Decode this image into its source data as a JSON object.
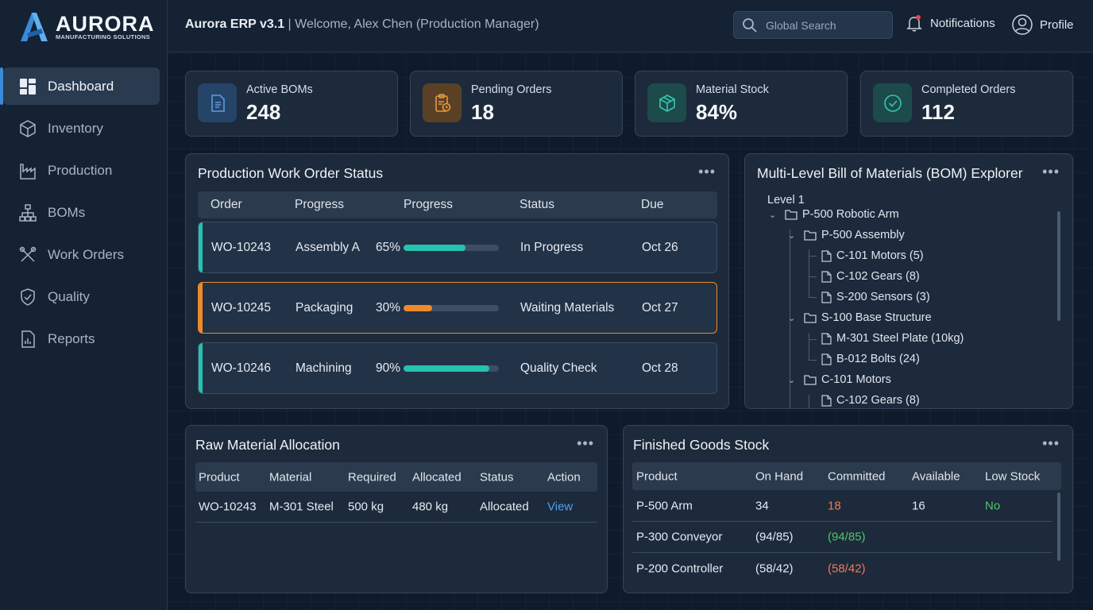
{
  "brand": {
    "name": "AURORA",
    "subtitle": "MANUFACTURING SOLUTIONS"
  },
  "topbar": {
    "app": "Aurora ERP v3.1",
    "welcome": "| Welcome, Alex Chen (Production Manager)",
    "search_placeholder": "Global Search",
    "notifications": "Notifications",
    "profile": "Profile"
  },
  "nav": [
    {
      "label": "Dashboard",
      "icon": "dashboard-icon",
      "active": true
    },
    {
      "label": "Inventory",
      "icon": "box-icon"
    },
    {
      "label": "Production",
      "icon": "factory-icon"
    },
    {
      "label": "BOMs",
      "icon": "hierarchy-icon"
    },
    {
      "label": "Work Orders",
      "icon": "tools-icon"
    },
    {
      "label": "Quality",
      "icon": "shield-check-icon"
    },
    {
      "label": "Reports",
      "icon": "report-icon"
    }
  ],
  "kpis": [
    {
      "label": "Active BOMs",
      "value": "248",
      "icon": "document-icon",
      "color": "#5b9be0",
      "bg": "#264468"
    },
    {
      "label": "Pending Orders",
      "value": "18",
      "icon": "clipboard-clock-icon",
      "color": "#e79b3c",
      "bg": "#5a4126"
    },
    {
      "label": "Material Stock",
      "value": "84%",
      "icon": "cube-icon",
      "color": "#35c7b2",
      "bg": "#1d4a4a"
    },
    {
      "label": "Completed Orders",
      "value": "112",
      "icon": "check-circle-icon",
      "color": "#35c7b2",
      "bg": "#1d4a4a"
    }
  ],
  "work_orders": {
    "title": "Production Work Order Status",
    "headers": [
      "Order",
      "Progress",
      "Progress",
      "Status",
      "Due"
    ],
    "rows": [
      {
        "order": "WO-10243",
        "stage": "Assembly A",
        "pct": "65%",
        "progress": 0.65,
        "status": "In Progress",
        "due": "Oct 26",
        "color": "#26c2b0"
      },
      {
        "order": "WO-10245",
        "stage": "Packaging",
        "pct": "30%",
        "progress": 0.3,
        "status": "Waiting Materials",
        "due": "Oct 27",
        "color": "#ef8a2a"
      },
      {
        "order": "WO-10246",
        "stage": "Machining",
        "pct": "90%",
        "progress": 0.9,
        "status": "Quality Check",
        "due": "Oct 28",
        "color": "#26c2b0"
      }
    ]
  },
  "bom": {
    "title": "Multi-Level Bill of Materials (BOM) Explorer",
    "level": "Level 1",
    "nodes": [
      {
        "label": "P-500 Robotic Arm",
        "type": "folder",
        "depth": 0
      },
      {
        "label": "P-500 Assembly",
        "type": "folder",
        "depth": 1
      },
      {
        "label": "C-101 Motors (5)",
        "type": "file",
        "depth": 2
      },
      {
        "label": "C-102 Gears (8)",
        "type": "file",
        "depth": 2
      },
      {
        "label": "S-200 Sensors (3)",
        "type": "file",
        "depth": 2
      },
      {
        "label": "S-100 Base Structure",
        "type": "folder",
        "depth": 1
      },
      {
        "label": "M-301 Steel Plate (10kg)",
        "type": "file",
        "depth": 2
      },
      {
        "label": "B-012 Bolts (24)",
        "type": "file",
        "depth": 2
      },
      {
        "label": "C-101 Motors",
        "type": "folder",
        "depth": 1
      },
      {
        "label": "C-102 Gears (8)",
        "type": "file",
        "depth": 2
      }
    ]
  },
  "raw_material": {
    "title": "Raw Material Allocation",
    "headers": [
      "Product",
      "Material",
      "Required",
      "Allocated",
      "Status",
      "Action"
    ],
    "rows": [
      {
        "product": "WO-10243",
        "material": "M-301 Steel",
        "required": "500 kg",
        "allocated": "480 kg",
        "status": "Allocated",
        "action": "View"
      }
    ]
  },
  "finished_goods": {
    "title": "Finished Goods Stock",
    "headers": [
      "Product",
      "On Hand",
      "Committed",
      "Available",
      "Low Stock"
    ],
    "rows": [
      {
        "product": "P-500 Arm",
        "on_hand": "34",
        "committed": "18",
        "available": "16",
        "low": "No"
      },
      {
        "product": "P-300 Conveyor",
        "on_hand": "(94/85)",
        "committed": "(94/85)",
        "available": "",
        "low": ""
      },
      {
        "product": "P-200 Controller",
        "on_hand": "(58/42)",
        "committed": "(58/42)",
        "available": "",
        "low": ""
      }
    ]
  },
  "colors": {
    "accent": "#3a8bd8",
    "teal": "#26c2b0",
    "orange": "#ef8a2a",
    "green": "#4cc76a",
    "red": "#f07a55",
    "link": "#4ea3f0"
  }
}
